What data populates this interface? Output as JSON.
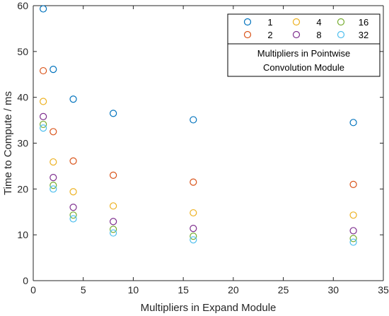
{
  "chart_data": {
    "type": "scatter",
    "xlabel": "Multipliers in Expand Module",
    "ylabel": "Time to Compute / ms",
    "xlim": [
      0,
      35
    ],
    "ylim": [
      0,
      60
    ],
    "xticks": [
      0,
      5,
      10,
      15,
      20,
      25,
      30,
      35
    ],
    "yticks": [
      0,
      10,
      20,
      30,
      40,
      50,
      60
    ],
    "grid": false,
    "legend_position": "top-right",
    "legend_title_lines": [
      "Multipliers in Pointwise",
      "Convolution Module"
    ],
    "x": [
      1,
      2,
      4,
      8,
      16,
      32
    ],
    "series": [
      {
        "name": "1",
        "color": "#0072BD",
        "values": [
          59.3,
          46.1,
          39.6,
          36.5,
          35.1,
          34.5
        ]
      },
      {
        "name": "2",
        "color": "#D95319",
        "values": [
          45.8,
          32.5,
          26.1,
          23.0,
          21.5,
          21.0
        ]
      },
      {
        "name": "4",
        "color": "#EDB120",
        "values": [
          39.1,
          25.9,
          19.4,
          16.3,
          14.8,
          14.3
        ]
      },
      {
        "name": "8",
        "color": "#7E2F8E",
        "values": [
          35.8,
          22.5,
          16.0,
          12.9,
          11.4,
          10.9
        ]
      },
      {
        "name": "16",
        "color": "#77AC30",
        "values": [
          34.1,
          20.8,
          14.3,
          11.2,
          9.7,
          9.2
        ]
      },
      {
        "name": "32",
        "color": "#4DBEEE",
        "values": [
          33.3,
          20.0,
          13.5,
          10.4,
          8.9,
          8.4
        ]
      }
    ]
  }
}
